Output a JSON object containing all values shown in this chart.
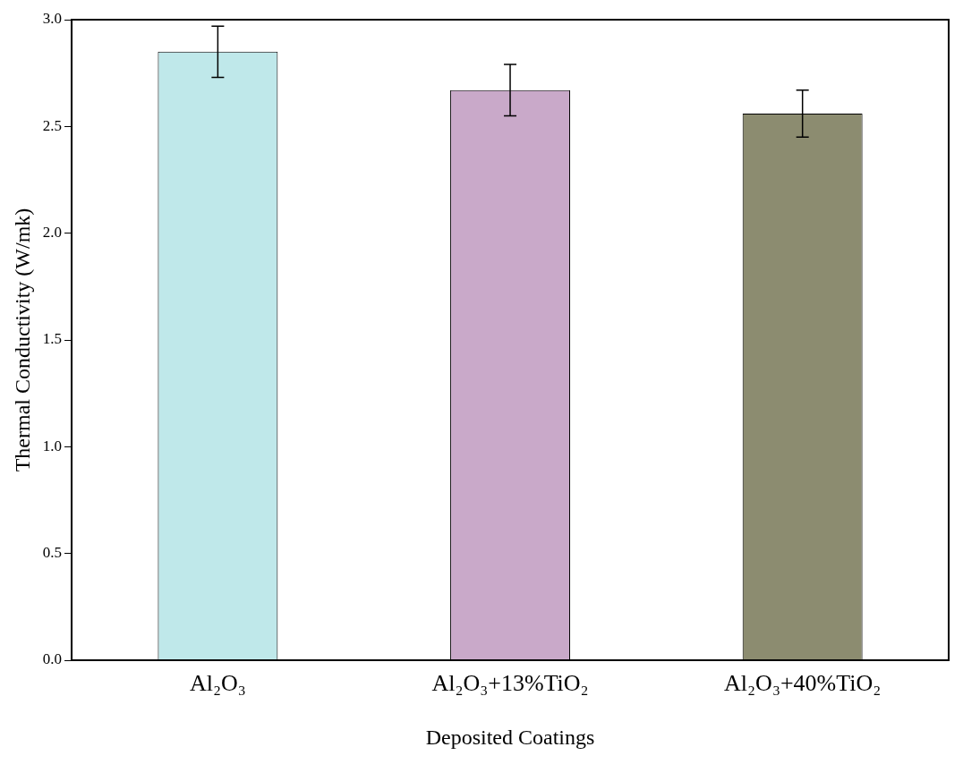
{
  "chart_data": {
    "type": "bar",
    "xlabel": "Deposited Coatings",
    "ylabel": "Thermal Conductivity (W/mk)",
    "categories": [
      "Al₂O₃",
      "Al₂O₃+13%TiO₂",
      "Al₂O₃+40%TiO₂"
    ],
    "values": [
      2.85,
      2.67,
      2.56
    ],
    "errors": [
      0.12,
      0.12,
      0.11
    ],
    "colors": [
      "#bfe8ea",
      "#c9a9c9",
      "#8c8c70"
    ],
    "ylim": [
      0,
      3
    ],
    "yticks": [
      {
        "value": 0,
        "label": "0.0"
      },
      {
        "value": 0.5,
        "label": "0.5"
      },
      {
        "value": 1,
        "label": "1.0"
      },
      {
        "value": 1.5,
        "label": "1.5"
      },
      {
        "value": 2,
        "label": "2.0"
      },
      {
        "value": 2.5,
        "label": "2.5"
      },
      {
        "value": 3,
        "label": "3.0"
      }
    ],
    "grid": false,
    "legend": false
  }
}
